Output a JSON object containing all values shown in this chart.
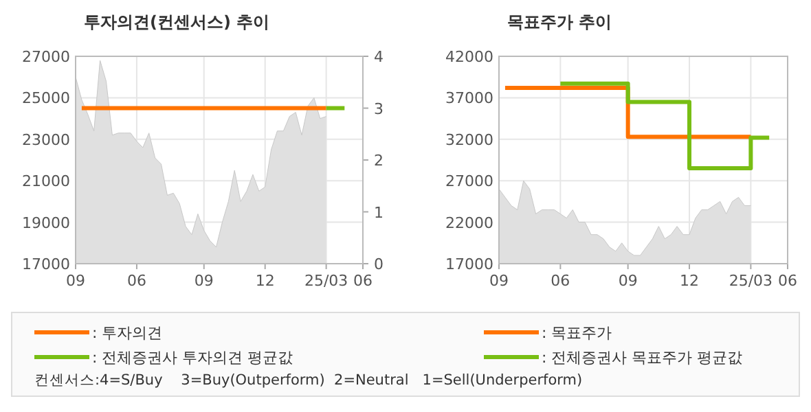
{
  "chart_data": [
    {
      "type": "area",
      "title": "투자의견(컨센서스) 추이",
      "categories": [
        "09",
        null,
        null,
        null,
        null,
        null,
        null,
        null,
        null,
        null,
        "06",
        null,
        null,
        null,
        null,
        null,
        null,
        null,
        null,
        null,
        null,
        "09",
        null,
        null,
        null,
        null,
        null,
        null,
        null,
        null,
        null,
        "12",
        null,
        null,
        null,
        null,
        null,
        null,
        null,
        null,
        null,
        "25/03",
        null,
        null,
        null,
        null,
        null,
        "06"
      ],
      "ylim": [
        17000,
        27000
      ],
      "yticks": [
        17000,
        19000,
        21000,
        23000,
        25000,
        27000
      ],
      "y2lim": [
        0,
        4
      ],
      "y2ticks": [
        0,
        1,
        2,
        3,
        4
      ],
      "grid": true,
      "legend": "bottom",
      "annotations": [
        "컨센서스:4=S/Buy    3=Buy(Outperform)  2=Neutral   1=Sell(Underperform)"
      ],
      "series": [
        {
          "color": "#c8c8c8",
          "values": [
            26000,
            24900,
            24200,
            23400,
            26800,
            25800,
            23200,
            23300,
            23300,
            23300,
            22900,
            22600,
            23300,
            22100,
            21800,
            20300,
            20400,
            19900,
            18800,
            18400,
            19400,
            18600,
            18100,
            17800,
            19000,
            20000,
            21500,
            20000,
            20500,
            21300,
            20500,
            20700,
            22500,
            23400,
            23400,
            24100,
            24300,
            23200,
            24600,
            25000,
            24000,
            24100,
            null,
            null,
            null,
            null,
            null,
            null
          ]
        },
        {
          "type": "line",
          "name": ": 투자의견",
          "color": "#ff7300",
          "axis": "y2",
          "values": [
            null,
            3,
            3,
            3,
            3,
            3,
            3,
            3,
            3,
            3,
            3,
            3,
            3,
            3,
            3,
            3,
            3,
            3,
            3,
            3,
            3,
            3,
            3,
            3,
            3,
            3,
            3,
            3,
            3,
            3,
            3,
            3,
            3,
            3,
            3,
            3,
            3,
            3,
            3,
            3,
            3,
            3,
            null,
            null,
            null,
            null,
            null,
            null
          ]
        },
        {
          "type": "line",
          "name": ": 전체증권사 투자의견 평균값",
          "color": "#78be14",
          "axis": "y2",
          "values": [
            null,
            null,
            null,
            null,
            null,
            null,
            null,
            null,
            null,
            null,
            null,
            null,
            null,
            null,
            null,
            null,
            null,
            null,
            null,
            null,
            null,
            null,
            null,
            null,
            null,
            null,
            null,
            null,
            null,
            null,
            null,
            null,
            null,
            null,
            null,
            null,
            null,
            null,
            null,
            null,
            null,
            3,
            3,
            3,
            3,
            null,
            null,
            null
          ]
        }
      ]
    },
    {
      "type": "step",
      "title": "목표주가 추이",
      "categories": [
        "09",
        null,
        null,
        null,
        null,
        null,
        null,
        null,
        null,
        null,
        "06",
        null,
        null,
        null,
        null,
        null,
        null,
        null,
        null,
        null,
        null,
        "09",
        null,
        null,
        null,
        null,
        null,
        null,
        null,
        null,
        null,
        "12",
        null,
        null,
        null,
        null,
        null,
        null,
        null,
        null,
        null,
        "25/03",
        null,
        null,
        null,
        null,
        null,
        "06"
      ],
      "ylim": [
        17000,
        42000
      ],
      "yticks": [
        17000,
        22000,
        27000,
        32000,
        37000,
        42000
      ],
      "grid": true,
      "legend": "bottom",
      "series": [
        {
          "type": "area",
          "color": "#c8c8c8",
          "values": [
            26000,
            25000,
            24000,
            23500,
            27000,
            26000,
            23000,
            23500,
            23500,
            23500,
            23000,
            22500,
            23500,
            22000,
            22000,
            20500,
            20500,
            20000,
            19000,
            18500,
            19500,
            18500,
            18000,
            18000,
            19000,
            20000,
            21500,
            20000,
            20500,
            21500,
            20500,
            20500,
            22500,
            23500,
            23500,
            24000,
            24500,
            23000,
            24500,
            25000,
            24000,
            24000,
            null,
            null,
            null,
            null,
            null,
            null
          ]
        },
        {
          "name": ": 목표주가",
          "color": "#ff7300",
          "values": [
            null,
            38200,
            38200,
            38200,
            38200,
            38200,
            38200,
            38200,
            38200,
            38200,
            38200,
            38200,
            38200,
            38200,
            38200,
            38200,
            38200,
            38200,
            38200,
            38200,
            38200,
            32300,
            32300,
            32300,
            32300,
            32300,
            32300,
            32300,
            32300,
            32300,
            32300,
            32300,
            32300,
            32300,
            32300,
            32300,
            32300,
            32300,
            32300,
            32300,
            32300,
            32300,
            null,
            null,
            null,
            null,
            null,
            null
          ]
        },
        {
          "name": ": 전체증권사 목표주가 평균값",
          "color": "#78be14",
          "values": [
            null,
            null,
            null,
            null,
            null,
            null,
            null,
            null,
            null,
            null,
            38700,
            38700,
            38700,
            38700,
            38700,
            38700,
            38700,
            38700,
            38700,
            38700,
            38700,
            36500,
            36500,
            36500,
            36500,
            36500,
            36500,
            36500,
            36500,
            36500,
            36500,
            28500,
            28500,
            28500,
            28500,
            28500,
            28500,
            28500,
            28500,
            28500,
            28500,
            32200,
            32200,
            32200,
            32200,
            null,
            null,
            null
          ]
        }
      ]
    }
  ]
}
